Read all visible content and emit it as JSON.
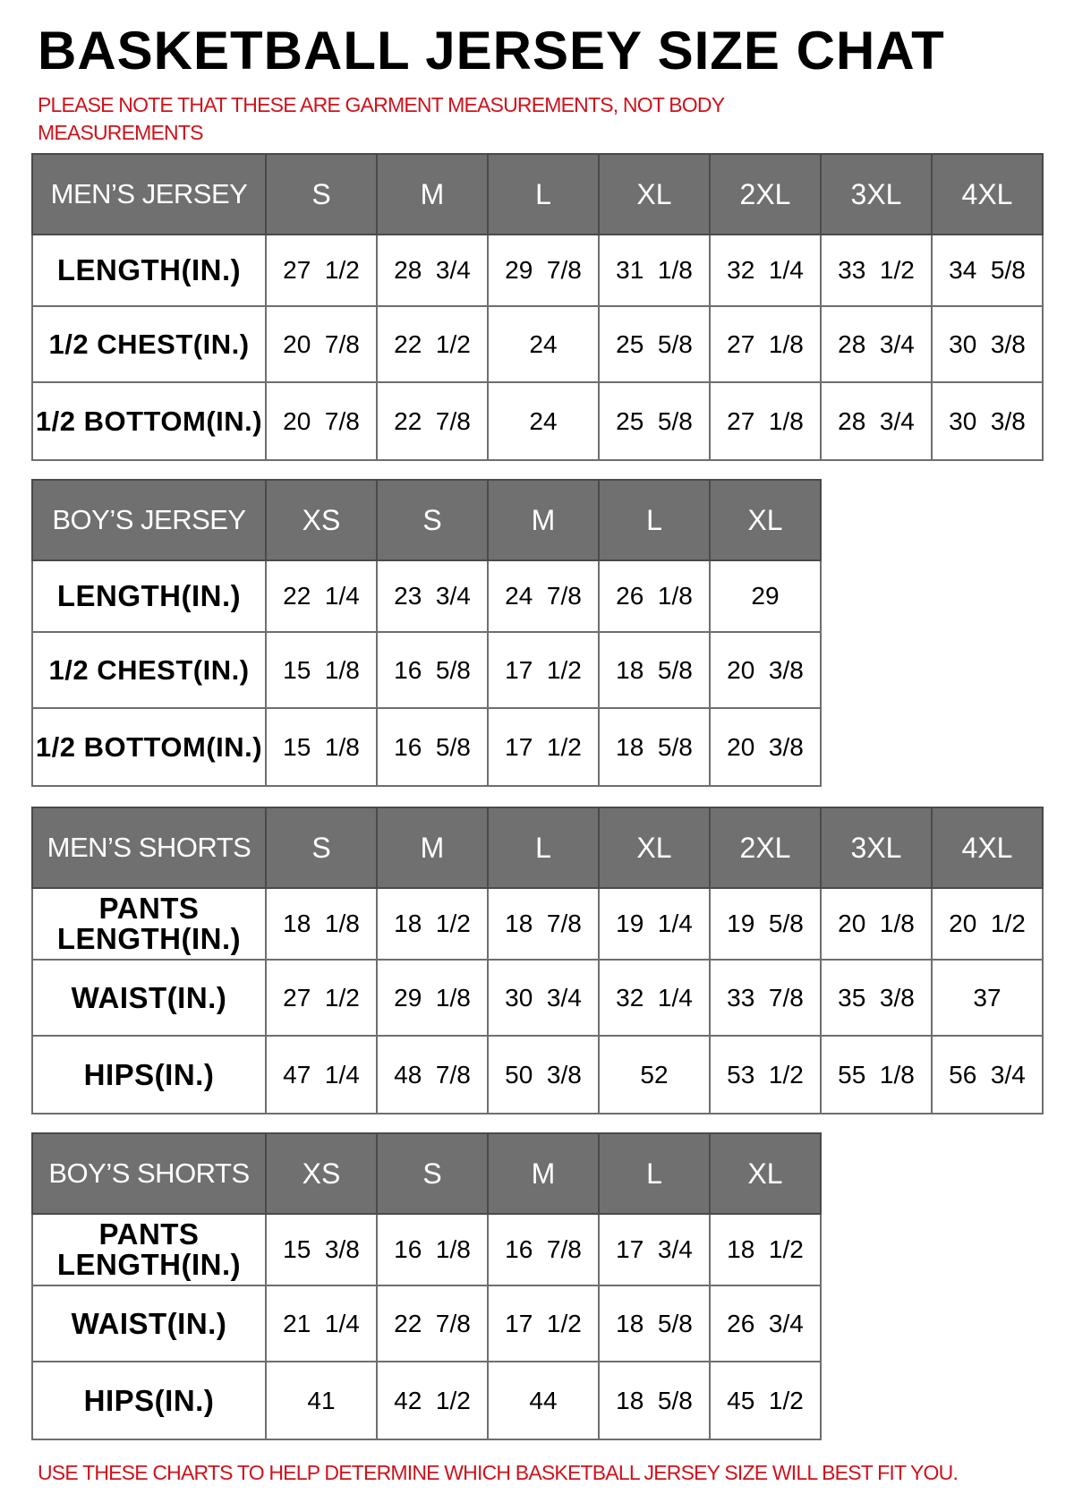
{
  "title": "BASKETBALL JERSEY SIZE CHAT",
  "note": "PLEASE NOTE THAT THESE ARE GARMENT MEASUREMENTS, NOT BODY MEASUREMENTS",
  "footer": "USE THESE CHARTS TO HELP DETERMINE WHICH BASKETBALL JERSEY SIZE WILL BEST FIT YOU.",
  "colors": {
    "header_bg": "#707070",
    "note_red": "#d0121b"
  },
  "tables": [
    {
      "heading": "MEN’S JERSEY",
      "sizes": [
        "S",
        "M",
        "L",
        "XL",
        "2XL",
        "3XL",
        "4XL"
      ],
      "rows": [
        {
          "label": "LENGTH(IN.)",
          "values": [
            "27  1/2",
            "28  3/4",
            "29  7/8",
            "31  1/8",
            "32  1/4",
            "33  1/2",
            "34  5/8"
          ]
        },
        {
          "label": "1/2  CHEST(IN.)",
          "values": [
            "20  7/8",
            "22  1/2",
            "24",
            "25  5/8",
            "27  1/8",
            "28  3/4",
            "30  3/8"
          ]
        },
        {
          "label": "1/2  BOTTOM(IN.)",
          "values": [
            "20  7/8",
            "22  7/8",
            "24",
            "25  5/8",
            "27  1/8",
            "28  3/4",
            "30  3/8"
          ]
        }
      ]
    },
    {
      "heading": "BOY’S JERSEY",
      "sizes": [
        "XS",
        "S",
        "M",
        "L",
        "XL"
      ],
      "rows": [
        {
          "label": "LENGTH(IN.)",
          "values": [
            "22  1/4",
            "23  3/4",
            "24  7/8",
            "26  1/8",
            "29"
          ]
        },
        {
          "label": "1/2  CHEST(IN.)",
          "values": [
            "15  1/8",
            "16  5/8",
            "17  1/2",
            "18  5/8",
            "20  3/8"
          ]
        },
        {
          "label": "1/2  BOTTOM(IN.)",
          "values": [
            "15  1/8",
            "16  5/8",
            "17  1/2",
            "18  5/8",
            "20  3/8"
          ]
        }
      ]
    },
    {
      "heading": "MEN’S SHORTS",
      "sizes": [
        "S",
        "M",
        "L",
        "XL",
        "2XL",
        "3XL",
        "4XL"
      ],
      "rows": [
        {
          "label": "PANTS\nLENGTH(IN.)",
          "values": [
            "18  1/8",
            "18  1/2",
            "18  7/8",
            "19  1/4",
            "19  5/8",
            "20  1/8",
            "20  1/2"
          ]
        },
        {
          "label": "WAIST(IN.)",
          "values": [
            "27  1/2",
            "29  1/8",
            "30  3/4",
            "32  1/4",
            "33  7/8",
            "35  3/8",
            "37"
          ]
        },
        {
          "label": "HIPS(IN.)",
          "values": [
            "47  1/4",
            "48  7/8",
            "50  3/8",
            "52",
            "53  1/2",
            "55  1/8",
            "56  3/4"
          ]
        }
      ]
    },
    {
      "heading": "BOY’S SHORTS",
      "sizes": [
        "XS",
        "S",
        "M",
        "L",
        "XL"
      ],
      "rows": [
        {
          "label": "PANTS\nLENGTH(IN.)",
          "values": [
            "15  3/8",
            "16  1/8",
            "16  7/8",
            "17  3/4",
            "18  1/2"
          ]
        },
        {
          "label": "WAIST(IN.)",
          "values": [
            "21  1/4",
            "22  7/8",
            "17  1/2",
            "18  5/8",
            "26  3/4"
          ]
        },
        {
          "label": "HIPS(IN.)",
          "values": [
            "41",
            "42  1/2",
            "44",
            "18  5/8",
            "45  1/2"
          ]
        }
      ]
    }
  ]
}
